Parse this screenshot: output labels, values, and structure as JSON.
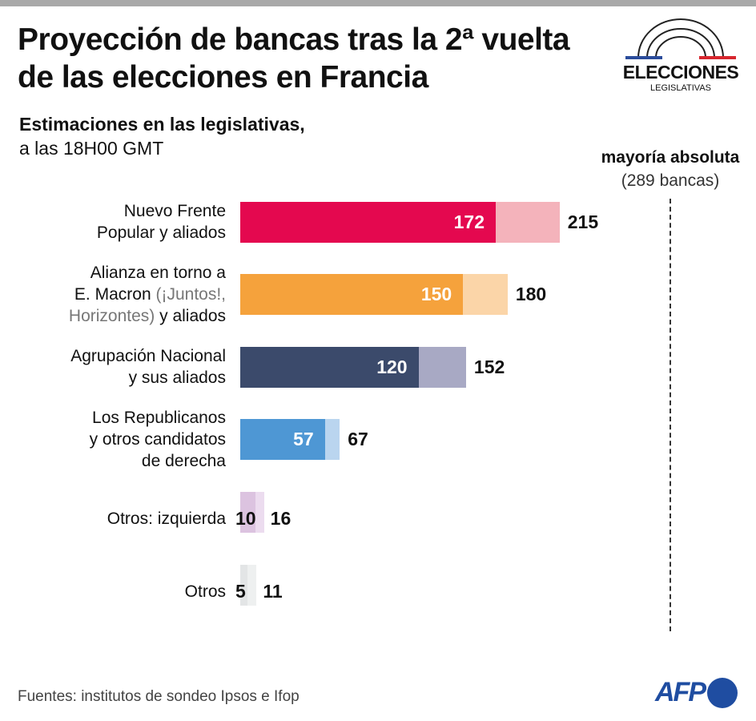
{
  "title": "Proyección de bancas tras la 2ª vuelta de las elecciones en Francia",
  "subtitle_line1": "Estimaciones en las legislativas,",
  "subtitle_line2": "a las 18H00 GMT",
  "logo": {
    "text": "ELECCIONES",
    "subtext": "LEGISLATIVAS",
    "colors": {
      "blue": "#2b4c9b",
      "red": "#d7262e"
    }
  },
  "majority": {
    "label": "mayoría absoluta",
    "sublabel": "(289 bancas)",
    "value": 289
  },
  "source": "Fuentes: institutos de sondeo Ipsos e Ifop",
  "agency": "AFP",
  "chart_data": {
    "type": "bar",
    "orientation": "horizontal",
    "categories": [
      "Nuevo Frente Popular y aliados",
      "Alianza en torno a E. Macron (¡Juntos!, Horizontes) y aliados",
      "Agrupación Nacional y sus aliados",
      "Los Republicanos y otros candidatos de derecha",
      "Otros: izquierda",
      "Otros"
    ],
    "label_lines": [
      [
        [
          {
            "t": "Nuevo Frente",
            "g": false
          }
        ],
        [
          {
            "t": "Popular y aliados",
            "g": false
          }
        ]
      ],
      [
        [
          {
            "t": "Alianza en torno a",
            "g": false
          }
        ],
        [
          {
            "t": "E. Macron ",
            "g": false
          },
          {
            "t": "(¡Juntos!,",
            "g": true
          }
        ],
        [
          {
            "t": "Horizontes)",
            "g": true
          },
          {
            "t": " y aliados",
            "g": false
          }
        ]
      ],
      [
        [
          {
            "t": "Agrupación Nacional",
            "g": false
          }
        ],
        [
          {
            "t": "y sus aliados",
            "g": false
          }
        ]
      ],
      [
        [
          {
            "t": "Los Republicanos",
            "g": false
          }
        ],
        [
          {
            "t": "y otros candidatos",
            "g": false
          }
        ],
        [
          {
            "t": "de derecha",
            "g": false
          }
        ]
      ],
      [
        [
          {
            "t": "Otros: izquierda",
            "g": false
          }
        ]
      ],
      [
        [
          {
            "t": "Otros",
            "g": false
          }
        ]
      ]
    ],
    "series": [
      {
        "values": [
          172,
          150,
          120,
          57,
          10,
          5
        ]
      },
      {
        "values": [
          215,
          180,
          152,
          67,
          16,
          11
        ]
      }
    ],
    "colors_low": [
      "#e4084f",
      "#f5a23c",
      "#3b4a6b",
      "#4e97d4",
      "#dcc3e0",
      "#e3e5e6"
    ],
    "colors_high": [
      "#f4b3bb",
      "#fbd5a8",
      "#a8a9c4",
      "#bad5ef",
      "#ecdcef",
      "#eef0f0"
    ],
    "reference_line": 289,
    "xlim": [
      0,
      289
    ]
  }
}
